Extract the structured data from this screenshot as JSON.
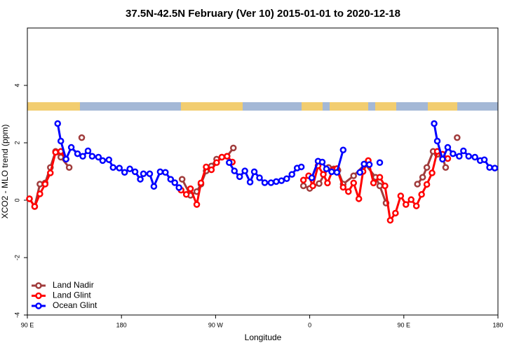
{
  "chart_data": {
    "type": "line",
    "title": "37.5N-42.5N February (Ver 10)   2015-01-01 to 2020-12-18",
    "x_label": "Longitude",
    "y_label": "XCO2 - MLO trend (ppm)",
    "xlim": [
      90,
      540
    ],
    "ylim": [
      -4,
      6
    ],
    "xticks": [
      {
        "value": 90,
        "label": "90 E"
      },
      180,
      {
        "value": 270,
        "label": "90 W"
      },
      {
        "value": 360,
        "label": "0"
      },
      {
        "value": 450,
        "label": "90 E"
      },
      {
        "value": 540,
        "label": "180"
      }
    ],
    "yticks": [
      -4,
      -2,
      0,
      2,
      4
    ],
    "grid": false,
    "legend": "bottom-left",
    "series": [
      {
        "name": "Land Nadir",
        "color": "#a03c3c",
        "x": [
          92,
          97,
          102,
          107,
          112,
          117,
          122,
          130,
          135,
          142,
          145,
          238,
          246,
          252,
          256,
          261,
          266,
          271,
          276,
          281,
          287,
          300,
          354,
          360,
          369,
          378,
          383,
          387,
          392,
          402,
          413,
          423,
          427,
          433,
          440,
          463,
          468,
          472,
          478,
          482,
          487,
          490,
          495,
          501
        ],
        "values": [
          0.05,
          -0.22,
          0.56,
          0.6,
          1.14,
          1.7,
          1.5,
          1.14,
          null,
          2.18,
          null,
          0.73,
          0.17,
          0.3,
          0.56,
          1.02,
          1.19,
          1.43,
          1.5,
          1.53,
          1.82,
          null,
          0.5,
          0.41,
          0.58,
          1.14,
          1.09,
          1.04,
          0.56,
          0.85,
          1.26,
          0.8,
          0.5,
          -0.1,
          null,
          0.56,
          0.8,
          1.14,
          1.7,
          1.6,
          1.5,
          1.14,
          null,
          2.18
        ]
      },
      {
        "name": "Land Glint",
        "color": "#ff0000",
        "x": [
          92,
          97,
          102,
          107,
          112,
          117,
          122,
          127,
          135,
          237,
          242,
          246,
          252,
          256,
          261,
          266,
          271,
          276,
          281,
          286,
          300,
          354,
          359,
          363,
          368,
          373,
          377,
          382,
          386,
          392,
          397,
          402,
          407,
          411,
          416,
          421,
          427,
          432,
          437,
          442,
          447,
          452,
          457,
          462,
          467,
          472,
          477,
          482,
          487,
          492
        ],
        "values": [
          0.05,
          -0.22,
          0.22,
          0.56,
          0.95,
          1.67,
          1.7,
          1.43,
          null,
          0.35,
          0.2,
          0.4,
          -0.15,
          0.6,
          1.16,
          1.06,
          1.31,
          1.5,
          1.53,
          1.33,
          null,
          0.7,
          0.85,
          0.5,
          1.2,
          0.9,
          0.6,
          1.05,
          1.1,
          0.45,
          0.3,
          0.6,
          0.05,
          1.0,
          1.38,
          0.6,
          0.8,
          0.5,
          -0.7,
          -0.45,
          0.15,
          -0.15,
          0.02,
          -0.2,
          0.2,
          0.55,
          0.95,
          1.7,
          1.6,
          1.45
        ]
      },
      {
        "name": "Ocean Glint",
        "color": "#0000ff",
        "x": [
          119,
          122,
          127,
          132,
          138,
          143,
          148,
          152,
          158,
          162,
          168,
          172,
          178,
          183,
          188,
          193,
          198,
          201,
          207,
          211,
          217,
          222,
          227,
          231,
          235,
          260,
          283,
          288,
          293,
          298,
          303,
          307,
          312,
          317,
          323,
          328,
          333,
          338,
          343,
          348,
          352,
          357,
          362,
          368,
          372,
          376,
          381,
          386,
          392,
          397,
          408,
          412,
          417,
          422,
          427,
          440,
          479,
          482,
          487,
          492,
          497,
          503,
          507,
          512,
          518,
          523,
          527,
          532,
          537
        ],
        "values": [
          2.67,
          2.06,
          1.43,
          1.84,
          1.62,
          1.53,
          1.72,
          1.53,
          1.5,
          1.38,
          1.41,
          1.14,
          1.12,
          0.97,
          1.09,
          0.99,
          0.73,
          0.92,
          0.92,
          0.48,
          0.99,
          0.97,
          0.73,
          0.61,
          0.44,
          null,
          1.31,
          1.02,
          0.82,
          1.02,
          0.63,
          0.99,
          0.78,
          0.61,
          0.61,
          0.65,
          0.68,
          0.75,
          0.9,
          1.12,
          1.16,
          null,
          0.78,
          1.36,
          1.33,
          1.09,
          0.99,
          0.97,
          1.75,
          null,
          0.97,
          1.26,
          1.24,
          null,
          1.31,
          null,
          2.67,
          2.06,
          1.43,
          1.84,
          1.62,
          1.53,
          1.72,
          1.53,
          1.5,
          1.38,
          1.41,
          1.14,
          1.12
        ]
      }
    ]
  }
}
